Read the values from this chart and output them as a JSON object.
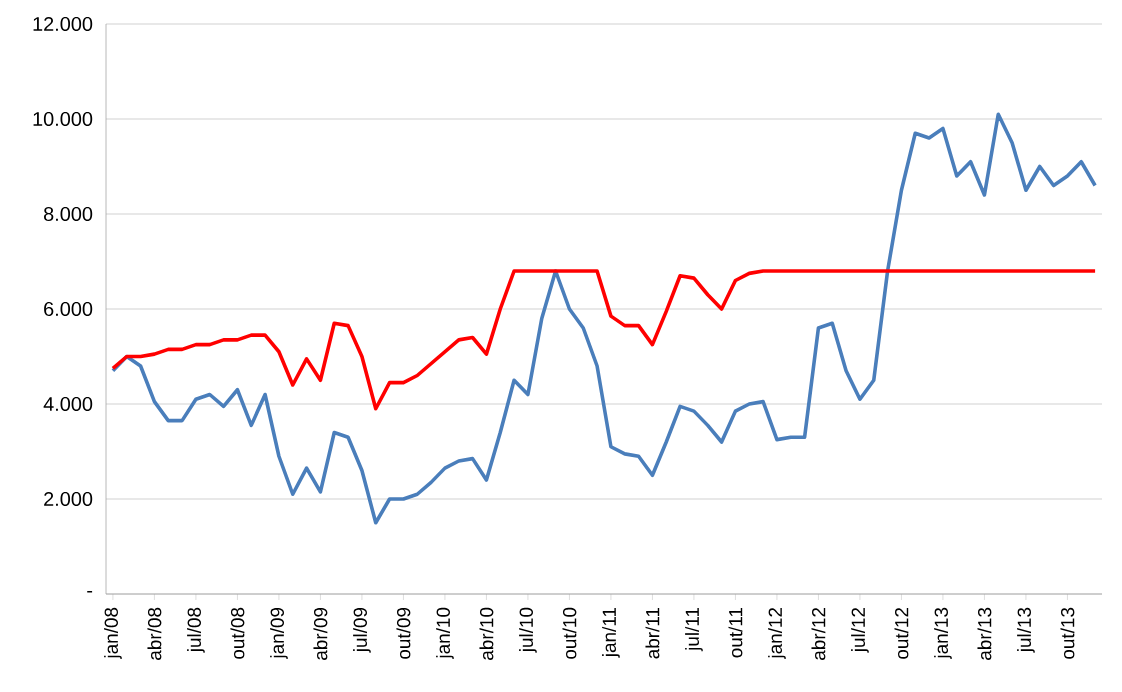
{
  "chart_data": {
    "type": "line",
    "categories": [
      "jan/08",
      null,
      null,
      "abr/08",
      null,
      null,
      "jul/08",
      null,
      null,
      "out/08",
      null,
      null,
      "jan/09",
      null,
      null,
      "abr/09",
      null,
      null,
      "jul/09",
      null,
      null,
      "out/09",
      null,
      null,
      "jan/10",
      null,
      null,
      "abr/10",
      null,
      null,
      "jul/10",
      null,
      null,
      "out/10",
      null,
      null,
      "jan/11",
      null,
      null,
      "abr/11",
      null,
      null,
      "jul/11",
      null,
      null,
      "out/11",
      null,
      null,
      "jan/12",
      null,
      null,
      "abr/12",
      null,
      null,
      "jul/12",
      null,
      null,
      "out/12",
      null,
      null,
      "jan/13",
      null,
      null,
      "abr/13",
      null,
      null,
      "jul/13",
      null,
      null,
      "out/13",
      null,
      null
    ],
    "series": [
      {
        "color": "#4a7ebb",
        "values": [
          4700,
          5000,
          4800,
          4050,
          3650,
          3650,
          4100,
          4200,
          3950,
          4300,
          3550,
          4200,
          2900,
          2100,
          2650,
          2150,
          3400,
          3300,
          2600,
          1500,
          2000,
          2000,
          2100,
          2350,
          2650,
          2800,
          2850,
          2400,
          3400,
          4500,
          4200,
          5800,
          6800,
          6000,
          5600,
          4800,
          3100,
          2950,
          2900,
          2500,
          3200,
          3950,
          3850,
          3550,
          3200,
          3850,
          4000,
          4050,
          3250,
          3300,
          3300,
          5600,
          5700,
          4700,
          4100,
          4500,
          6800,
          8500,
          9700,
          9600,
          9800,
          8800,
          9100,
          8400,
          10100,
          9500,
          8500,
          9000,
          8600,
          8800,
          9100,
          8600
        ]
      },
      {
        "color": "#ff0000",
        "values": [
          4750,
          5000,
          5000,
          5050,
          5150,
          5150,
          5250,
          5250,
          5350,
          5350,
          5450,
          5450,
          5100,
          4400,
          4950,
          4500,
          5700,
          5650,
          5000,
          3900,
          4450,
          4450,
          4600,
          4850,
          5100,
          5350,
          5400,
          5050,
          6000,
          6800,
          6800,
          6800,
          6800,
          6800,
          6800,
          6800,
          5850,
          5650,
          5650,
          5250,
          5950,
          6700,
          6650,
          6300,
          6000,
          6600,
          6750,
          6800,
          6800,
          6800,
          6800,
          6800,
          6800,
          6800,
          6800,
          6800,
          6800,
          6800,
          6800,
          6800,
          6800,
          6800,
          6800,
          6800,
          6800,
          6800,
          6800,
          6800,
          6800,
          6800,
          6800,
          6800
        ]
      }
    ],
    "ylim": [
      0,
      12000
    ],
    "yticks": [
      {
        "value": 0,
        "label": "-"
      },
      {
        "value": 2000,
        "label": "2.000"
      },
      {
        "value": 4000,
        "label": "4.000"
      },
      {
        "value": 6000,
        "label": "6.000"
      },
      {
        "value": 8000,
        "label": "8.000"
      },
      {
        "value": 10000,
        "label": "10.000"
      },
      {
        "value": 12000,
        "label": "12.000"
      }
    ],
    "grid": "y"
  }
}
